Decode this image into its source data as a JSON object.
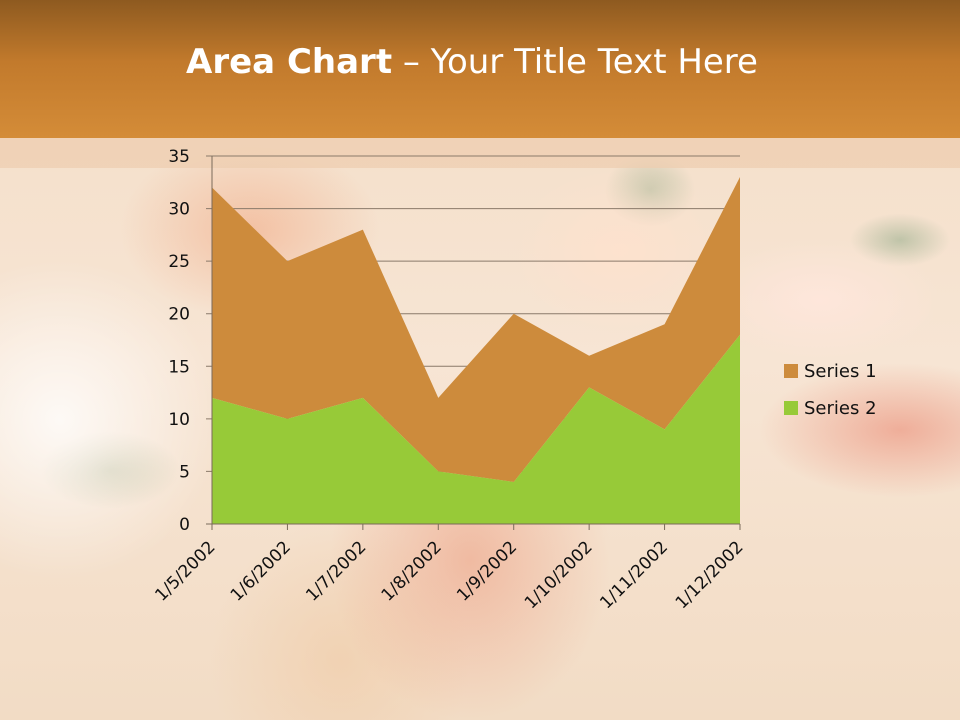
{
  "slide": {
    "title_bold": "Area Chart",
    "title_rest": " – Your Title Text Here"
  },
  "colors": {
    "series1": "#cd8b3c",
    "series2": "#97ca38",
    "gridline": "#8a7a6a",
    "axis": "#7a6a5a"
  },
  "chart_data": {
    "type": "area",
    "stacked": true,
    "categories": [
      "1/5/2002",
      "1/6/2002",
      "1/7/2002",
      "1/8/2002",
      "1/9/2002",
      "1/10/2002",
      "1/11/2002",
      "1/12/2002"
    ],
    "series": [
      {
        "name": "Series 1",
        "values": [
          20,
          15,
          16,
          7,
          16,
          3,
          10,
          15
        ]
      },
      {
        "name": "Series 2",
        "values": [
          12,
          10,
          12,
          5,
          4,
          13,
          9,
          18
        ]
      }
    ],
    "ylim": [
      0,
      35
    ],
    "yticks": [
      "0",
      "5",
      "10",
      "15",
      "20",
      "25",
      "30",
      "35"
    ],
    "grid": true,
    "legend_position": "right"
  }
}
